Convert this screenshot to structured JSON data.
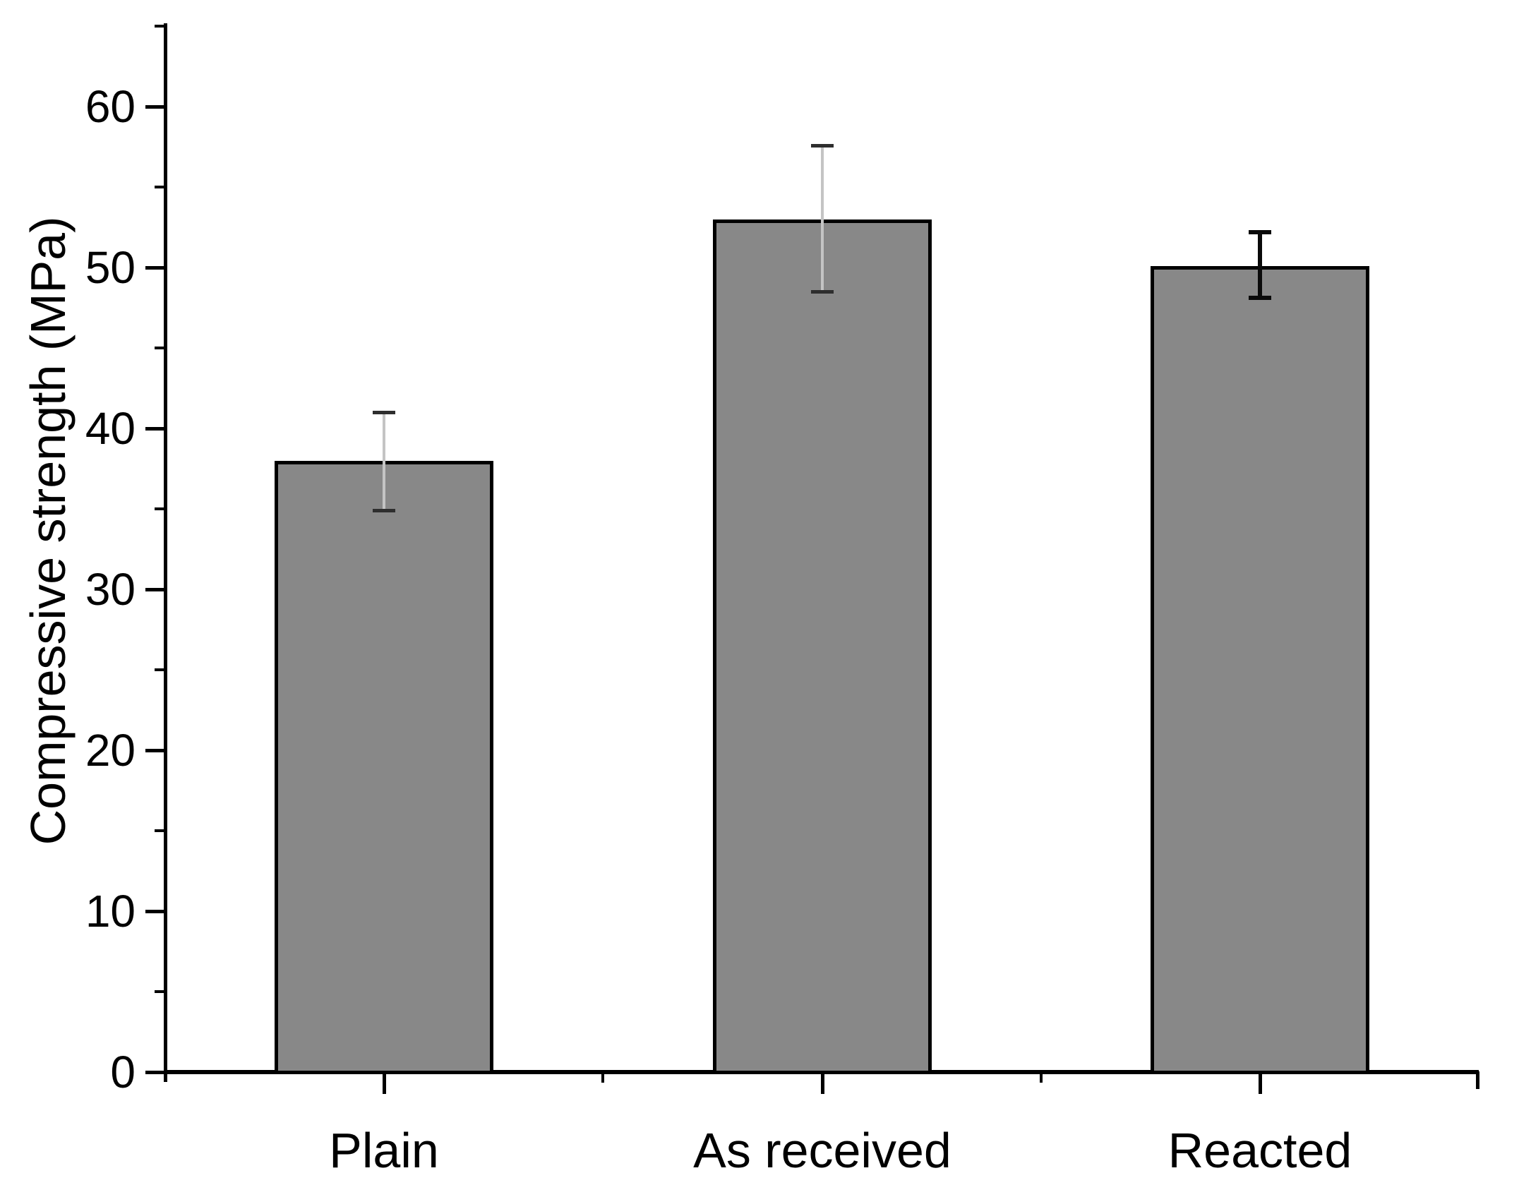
{
  "figure": {
    "background": "#ffffff",
    "text_color": "#000000"
  },
  "chart_data": {
    "type": "bar",
    "title": "",
    "xlabel": "",
    "ylabel": "Compressive strength (MPa)",
    "categories": [
      "Plain",
      "As received",
      "Reacted"
    ],
    "series": [
      {
        "name": "Compressive strength",
        "values": [
          38.0,
          53.0,
          50.1
        ],
        "error_plus": [
          3.0,
          4.6,
          2.1
        ],
        "error_minus": [
          3.1,
          4.5,
          2.0
        ]
      }
    ],
    "ylim": [
      0,
      65
    ],
    "y_major_ticks": [
      0,
      10,
      20,
      30,
      40,
      50,
      60
    ],
    "y_minor_ticks": [
      5,
      15,
      25,
      35,
      45,
      55,
      65
    ],
    "grid": false,
    "legend": "none",
    "bar_fill_color": "#888888",
    "bar_border_color": "#000000",
    "error_bar_styles": [
      "light-stem",
      "light-stem",
      "solid-black"
    ],
    "error_stem_light_color": "#c4c4c4",
    "error_cap_dark_color": "#2e2e2e",
    "error_solid_color": "#0a0a0a",
    "axis_color": "#000000"
  }
}
